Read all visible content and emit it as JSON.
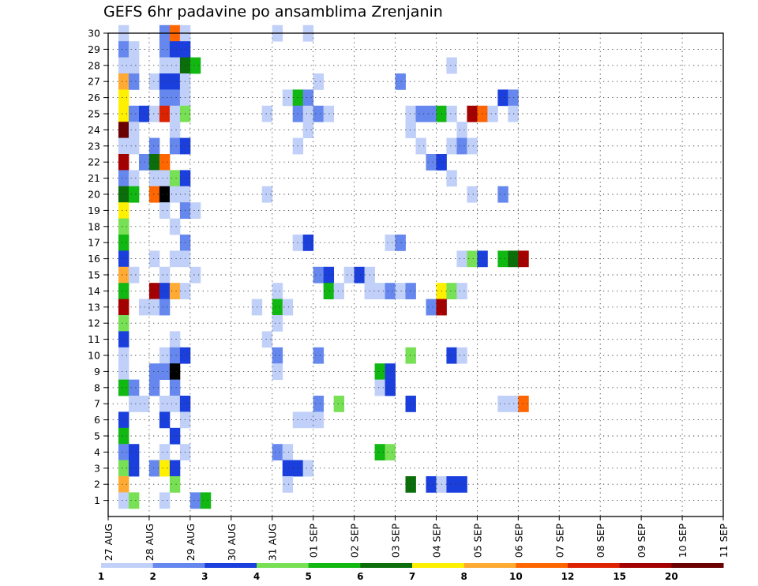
{
  "chart_data": {
    "type": "heatmap",
    "title": "GEFS 6hr padavine po ansamblima Zrenjanin",
    "xlabel": "",
    "ylabel": "",
    "x_tick_labels": [
      "27 AUG",
      "28 AUG",
      "29 AUG",
      "30 AUG",
      "31 AUG",
      "01 SEP",
      "02 SEP",
      "03 SEP",
      "04 SEP",
      "05 SEP",
      "06 SEP",
      "07 SEP",
      "08 SEP",
      "09 SEP",
      "10 SEP",
      "11 SEP"
    ],
    "y_tick_labels": [
      "1",
      "2",
      "3",
      "4",
      "5",
      "6",
      "7",
      "8",
      "9",
      "10",
      "11",
      "12",
      "13",
      "14",
      "15",
      "16",
      "17",
      "18",
      "19",
      "20",
      "21",
      "22",
      "23",
      "24",
      "25",
      "26",
      "27",
      "28",
      "29",
      "30"
    ],
    "time_steps_per_day": 4,
    "y_range": [
      0,
      30
    ],
    "grid": true,
    "legend": {
      "placement": "bottom",
      "colors": [
        "#c0d0f8",
        "#6688ee",
        "#1a3fdd",
        "#77e055",
        "#11b811",
        "#0b6e0b",
        "#fff000",
        "#ffaa33",
        "#ff6600",
        "#dd2200",
        "#a50000",
        "#6a0000"
      ],
      "labels": [
        "1",
        "2",
        "3",
        "4",
        "5",
        "6",
        "7",
        "8",
        "10",
        "12",
        "15",
        "20"
      ]
    },
    "cells": [
      [
        1,
        30,
        1
      ],
      [
        5,
        30,
        2
      ],
      [
        6,
        30,
        9
      ],
      [
        7,
        30,
        1
      ],
      [
        16,
        30,
        1
      ],
      [
        19,
        30,
        1
      ],
      [
        1,
        29,
        2
      ],
      [
        2,
        29,
        1
      ],
      [
        5,
        29,
        2
      ],
      [
        6,
        29,
        3
      ],
      [
        7,
        29,
        3
      ],
      [
        1,
        28,
        1
      ],
      [
        2,
        28,
        1
      ],
      [
        5,
        28,
        1
      ],
      [
        6,
        28,
        1
      ],
      [
        7,
        28,
        6
      ],
      [
        8,
        28,
        5
      ],
      [
        33,
        28,
        1
      ],
      [
        1,
        27,
        8
      ],
      [
        2,
        27,
        2
      ],
      [
        4,
        27,
        1
      ],
      [
        5,
        27,
        3
      ],
      [
        6,
        27,
        3
      ],
      [
        7,
        27,
        1
      ],
      [
        20,
        27,
        1
      ],
      [
        28,
        27,
        2
      ],
      [
        1,
        26,
        7
      ],
      [
        5,
        26,
        2
      ],
      [
        6,
        26,
        2
      ],
      [
        7,
        26,
        1
      ],
      [
        17,
        26,
        1
      ],
      [
        18,
        26,
        5
      ],
      [
        19,
        26,
        2
      ],
      [
        38,
        26,
        3
      ],
      [
        39,
        26,
        2
      ],
      [
        1,
        25,
        7
      ],
      [
        2,
        25,
        2
      ],
      [
        3,
        25,
        3
      ],
      [
        4,
        25,
        1
      ],
      [
        5,
        25,
        10
      ],
      [
        6,
        25,
        1
      ],
      [
        7,
        25,
        4
      ],
      [
        15,
        25,
        1
      ],
      [
        18,
        25,
        2
      ],
      [
        19,
        25,
        1
      ],
      [
        20,
        25,
        2
      ],
      [
        21,
        25,
        1
      ],
      [
        29,
        25,
        1
      ],
      [
        30,
        25,
        2
      ],
      [
        31,
        25,
        2
      ],
      [
        32,
        25,
        5
      ],
      [
        33,
        25,
        1
      ],
      [
        35,
        25,
        11
      ],
      [
        36,
        25,
        9
      ],
      [
        37,
        25,
        1
      ],
      [
        39,
        25,
        1
      ],
      [
        1,
        24,
        12
      ],
      [
        2,
        24,
        1
      ],
      [
        6,
        24,
        1
      ],
      [
        19,
        24,
        1
      ],
      [
        29,
        24,
        1
      ],
      [
        34,
        24,
        1
      ],
      [
        1,
        23,
        1
      ],
      [
        2,
        23,
        1
      ],
      [
        4,
        23,
        2
      ],
      [
        6,
        23,
        2
      ],
      [
        7,
        23,
        3
      ],
      [
        18,
        23,
        1
      ],
      [
        30,
        23,
        1
      ],
      [
        33,
        23,
        1
      ],
      [
        34,
        23,
        2
      ],
      [
        35,
        23,
        1
      ],
      [
        1,
        22,
        11
      ],
      [
        3,
        22,
        2
      ],
      [
        4,
        22,
        6
      ],
      [
        5,
        22,
        9
      ],
      [
        31,
        22,
        2
      ],
      [
        32,
        22,
        3
      ],
      [
        1,
        21,
        2
      ],
      [
        2,
        21,
        1
      ],
      [
        4,
        21,
        1
      ],
      [
        5,
        21,
        1
      ],
      [
        6,
        21,
        4
      ],
      [
        7,
        21,
        3
      ],
      [
        33,
        21,
        1
      ],
      [
        1,
        20,
        6
      ],
      [
        2,
        20,
        5
      ],
      [
        4,
        20,
        9
      ],
      [
        5,
        20,
        13
      ],
      [
        6,
        20,
        1
      ],
      [
        7,
        20,
        1
      ],
      [
        15,
        20,
        1
      ],
      [
        35,
        20,
        1
      ],
      [
        38,
        20,
        2
      ],
      [
        1,
        19,
        7
      ],
      [
        5,
        19,
        1
      ],
      [
        7,
        19,
        2
      ],
      [
        8,
        19,
        1
      ],
      [
        1,
        18,
        4
      ],
      [
        6,
        18,
        1
      ],
      [
        1,
        17,
        5
      ],
      [
        7,
        17,
        2
      ],
      [
        18,
        17,
        1
      ],
      [
        19,
        17,
        3
      ],
      [
        27,
        17,
        1
      ],
      [
        28,
        17,
        2
      ],
      [
        1,
        16,
        3
      ],
      [
        4,
        16,
        1
      ],
      [
        6,
        16,
        1
      ],
      [
        7,
        16,
        1
      ],
      [
        34,
        16,
        1
      ],
      [
        35,
        16,
        4
      ],
      [
        36,
        16,
        3
      ],
      [
        38,
        16,
        5
      ],
      [
        39,
        16,
        6
      ],
      [
        40,
        16,
        11
      ],
      [
        1,
        15,
        8
      ],
      [
        2,
        15,
        1
      ],
      [
        5,
        15,
        1
      ],
      [
        8,
        15,
        1
      ],
      [
        20,
        15,
        2
      ],
      [
        21,
        15,
        3
      ],
      [
        23,
        15,
        1
      ],
      [
        24,
        15,
        3
      ],
      [
        25,
        15,
        1
      ],
      [
        1,
        14,
        5
      ],
      [
        4,
        14,
        11
      ],
      [
        5,
        14,
        3
      ],
      [
        6,
        14,
        8
      ],
      [
        7,
        14,
        1
      ],
      [
        16,
        14,
        1
      ],
      [
        21,
        14,
        5
      ],
      [
        22,
        14,
        1
      ],
      [
        25,
        14,
        1
      ],
      [
        26,
        14,
        1
      ],
      [
        27,
        14,
        2
      ],
      [
        28,
        14,
        1
      ],
      [
        29,
        14,
        2
      ],
      [
        32,
        14,
        7
      ],
      [
        33,
        14,
        4
      ],
      [
        34,
        14,
        1
      ],
      [
        1,
        13,
        11
      ],
      [
        3,
        13,
        1
      ],
      [
        4,
        13,
        1
      ],
      [
        5,
        13,
        2
      ],
      [
        14,
        13,
        1
      ],
      [
        16,
        13,
        5
      ],
      [
        17,
        13,
        1
      ],
      [
        31,
        13,
        2
      ],
      [
        32,
        13,
        11
      ],
      [
        1,
        12,
        4
      ],
      [
        16,
        12,
        1
      ],
      [
        1,
        11,
        3
      ],
      [
        6,
        11,
        1
      ],
      [
        15,
        11,
        1
      ],
      [
        1,
        10,
        1
      ],
      [
        5,
        10,
        1
      ],
      [
        6,
        10,
        2
      ],
      [
        7,
        10,
        3
      ],
      [
        16,
        10,
        2
      ],
      [
        20,
        10,
        2
      ],
      [
        29,
        10,
        4
      ],
      [
        33,
        10,
        3
      ],
      [
        34,
        10,
        1
      ],
      [
        1,
        9,
        1
      ],
      [
        4,
        9,
        2
      ],
      [
        5,
        9,
        2
      ],
      [
        6,
        9,
        13
      ],
      [
        16,
        9,
        1
      ],
      [
        26,
        9,
        5
      ],
      [
        27,
        9,
        3
      ],
      [
        1,
        8,
        5
      ],
      [
        2,
        8,
        2
      ],
      [
        4,
        8,
        2
      ],
      [
        6,
        8,
        2
      ],
      [
        26,
        8,
        1
      ],
      [
        27,
        8,
        3
      ],
      [
        2,
        7,
        1
      ],
      [
        3,
        7,
        1
      ],
      [
        5,
        7,
        1
      ],
      [
        6,
        7,
        1
      ],
      [
        7,
        7,
        3
      ],
      [
        20,
        7,
        2
      ],
      [
        22,
        7,
        4
      ],
      [
        29,
        7,
        3
      ],
      [
        38,
        7,
        1
      ],
      [
        39,
        7,
        1
      ],
      [
        40,
        7,
        9
      ],
      [
        1,
        6,
        3
      ],
      [
        5,
        6,
        3
      ],
      [
        7,
        6,
        1
      ],
      [
        18,
        6,
        1
      ],
      [
        19,
        6,
        1
      ],
      [
        20,
        6,
        1
      ],
      [
        1,
        5,
        5
      ],
      [
        6,
        5,
        3
      ],
      [
        1,
        4,
        2
      ],
      [
        2,
        4,
        3
      ],
      [
        5,
        4,
        1
      ],
      [
        7,
        4,
        1
      ],
      [
        16,
        4,
        2
      ],
      [
        17,
        4,
        1
      ],
      [
        26,
        4,
        5
      ],
      [
        27,
        4,
        4
      ],
      [
        1,
        3,
        4
      ],
      [
        2,
        3,
        3
      ],
      [
        4,
        3,
        2
      ],
      [
        5,
        3,
        7
      ],
      [
        6,
        3,
        3
      ],
      [
        17,
        3,
        3
      ],
      [
        18,
        3,
        3
      ],
      [
        19,
        3,
        1
      ],
      [
        1,
        2,
        8
      ],
      [
        6,
        2,
        4
      ],
      [
        17,
        2,
        1
      ],
      [
        29,
        2,
        6
      ],
      [
        31,
        2,
        3
      ],
      [
        32,
        2,
        1
      ],
      [
        33,
        2,
        3
      ],
      [
        34,
        2,
        3
      ],
      [
        1,
        1,
        1
      ],
      [
        2,
        1,
        4
      ],
      [
        5,
        1,
        1
      ],
      [
        8,
        1,
        2
      ],
      [
        9,
        1,
        5
      ]
    ]
  }
}
